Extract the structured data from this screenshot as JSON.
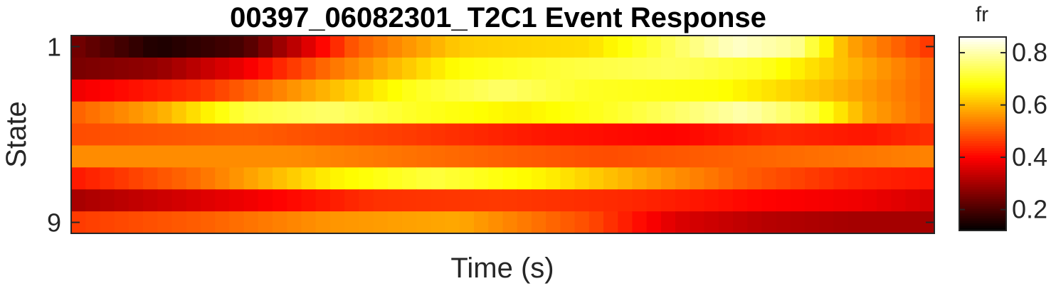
{
  "chart_data": {
    "type": "heatmap",
    "title": "00397_06082301_T2C1 Event Response",
    "xlabel": "Time (s)",
    "ylabel": "State",
    "x_tick_labels": [],
    "y_tick_labels": [
      {
        "value": 1,
        "label": "1"
      },
      {
        "value": 9,
        "label": "9"
      }
    ],
    "rows": 9,
    "columns": 60,
    "colormap": "hot",
    "colorbar": {
      "label": "fr",
      "range": [
        0.12,
        0.86
      ],
      "ticks": [
        {
          "value": 0.2,
          "label": "0.2"
        },
        {
          "value": 0.4,
          "label": "0.4"
        },
        {
          "value": 0.6,
          "label": "0.6"
        },
        {
          "value": 0.8,
          "label": "0.8"
        }
      ]
    },
    "row_profiles": [
      {
        "state": 1,
        "anchors": [
          [
            0,
            0.25
          ],
          [
            0.1,
            0.15
          ],
          [
            0.2,
            0.2
          ],
          [
            0.27,
            0.35
          ],
          [
            0.33,
            0.5
          ],
          [
            0.45,
            0.62
          ],
          [
            0.6,
            0.64
          ],
          [
            0.68,
            0.72
          ],
          [
            0.77,
            0.82
          ],
          [
            0.84,
            0.78
          ],
          [
            0.9,
            0.58
          ],
          [
            1,
            0.45
          ]
        ]
      },
      {
        "state": 2,
        "anchors": [
          [
            0,
            0.25
          ],
          [
            0.1,
            0.28
          ],
          [
            0.2,
            0.38
          ],
          [
            0.3,
            0.52
          ],
          [
            0.45,
            0.68
          ],
          [
            0.58,
            0.72
          ],
          [
            0.7,
            0.74
          ],
          [
            0.8,
            0.7
          ],
          [
            0.9,
            0.6
          ],
          [
            1,
            0.5
          ]
        ]
      },
      {
        "state": 3,
        "anchors": [
          [
            0,
            0.38
          ],
          [
            0.15,
            0.45
          ],
          [
            0.3,
            0.6
          ],
          [
            0.4,
            0.7
          ],
          [
            0.5,
            0.75
          ],
          [
            0.6,
            0.7
          ],
          [
            0.75,
            0.68
          ],
          [
            0.88,
            0.6
          ],
          [
            1,
            0.5
          ]
        ]
      },
      {
        "state": 4,
        "anchors": [
          [
            0,
            0.5
          ],
          [
            0.1,
            0.58
          ],
          [
            0.2,
            0.72
          ],
          [
            0.3,
            0.75
          ],
          [
            0.4,
            0.7
          ],
          [
            0.52,
            0.66
          ],
          [
            0.62,
            0.7
          ],
          [
            0.72,
            0.76
          ],
          [
            0.78,
            0.8
          ],
          [
            0.86,
            0.72
          ],
          [
            0.92,
            0.58
          ],
          [
            1,
            0.5
          ]
        ]
      },
      {
        "state": 5,
        "anchors": [
          [
            0,
            0.48
          ],
          [
            0.2,
            0.5
          ],
          [
            0.4,
            0.46
          ],
          [
            0.55,
            0.42
          ],
          [
            0.7,
            0.4
          ],
          [
            0.82,
            0.44
          ],
          [
            0.92,
            0.42
          ],
          [
            1,
            0.45
          ]
        ]
      },
      {
        "state": 6,
        "anchors": [
          [
            0,
            0.55
          ],
          [
            0.25,
            0.55
          ],
          [
            0.5,
            0.5
          ],
          [
            0.62,
            0.48
          ],
          [
            0.75,
            0.5
          ],
          [
            0.88,
            0.52
          ],
          [
            1,
            0.54
          ]
        ]
      },
      {
        "state": 7,
        "anchors": [
          [
            0,
            0.42
          ],
          [
            0.15,
            0.52
          ],
          [
            0.3,
            0.66
          ],
          [
            0.42,
            0.72
          ],
          [
            0.55,
            0.66
          ],
          [
            0.66,
            0.58
          ],
          [
            0.78,
            0.5
          ],
          [
            0.9,
            0.44
          ],
          [
            1,
            0.42
          ]
        ]
      },
      {
        "state": 8,
        "anchors": [
          [
            0,
            0.3
          ],
          [
            0.2,
            0.38
          ],
          [
            0.35,
            0.45
          ],
          [
            0.5,
            0.46
          ],
          [
            0.65,
            0.44
          ],
          [
            0.8,
            0.4
          ],
          [
            0.92,
            0.38
          ],
          [
            1,
            0.35
          ]
        ]
      },
      {
        "state": 9,
        "anchors": [
          [
            0,
            0.46
          ],
          [
            0.15,
            0.5
          ],
          [
            0.3,
            0.56
          ],
          [
            0.45,
            0.58
          ],
          [
            0.6,
            0.48
          ],
          [
            0.7,
            0.36
          ],
          [
            0.8,
            0.32
          ],
          [
            0.9,
            0.3
          ],
          [
            1,
            0.3
          ]
        ]
      }
    ]
  }
}
